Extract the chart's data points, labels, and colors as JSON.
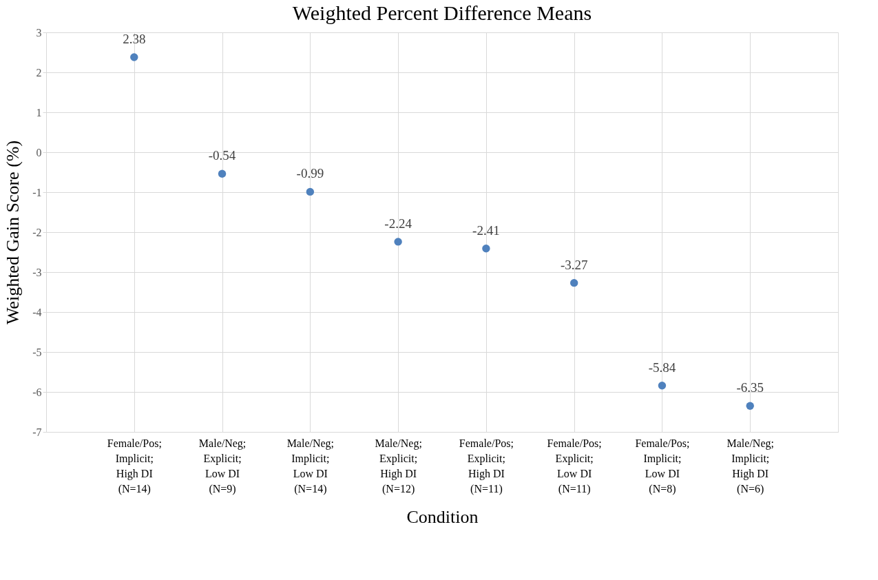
{
  "chart_data": {
    "type": "scatter",
    "title": "Weighted Percent Difference Means",
    "xlabel": "Condition",
    "ylabel": "Weighted Gain Score (%)",
    "categories": [
      "Female/Pos;\nImplicit;\n High DI\n(N=14)",
      "Male/Neg;\nExplicit;\n Low DI\n(N=9)",
      "Male/Neg;\nImplicit;\n Low DI\n(N=14)",
      "Male/Neg;\nExplicit;\n High DI\n(N=12)",
      "Female/Pos;\nExplicit;\nHigh DI\n(N=11)",
      "Female/Pos;\nExplicit;\nLow DI\n(N=11)",
      "Female/Pos;\nImplicit;\nLow DI\n(N=8)",
      "Male/Neg;\nImplicit;\nHigh DI\n(N=6)"
    ],
    "series": [
      {
        "color": "#4f81bd",
        "values": [
          2.38,
          -0.54,
          -0.99,
          -2.24,
          -2.41,
          -3.27,
          -5.84,
          -6.35
        ]
      }
    ],
    "ylim": [
      -7,
      3
    ],
    "yticks": [
      -7,
      -6,
      -5,
      -4,
      -3,
      -2,
      -1,
      0,
      1,
      2,
      3
    ],
    "grid": true,
    "data_labels": true,
    "marker": "circle"
  }
}
